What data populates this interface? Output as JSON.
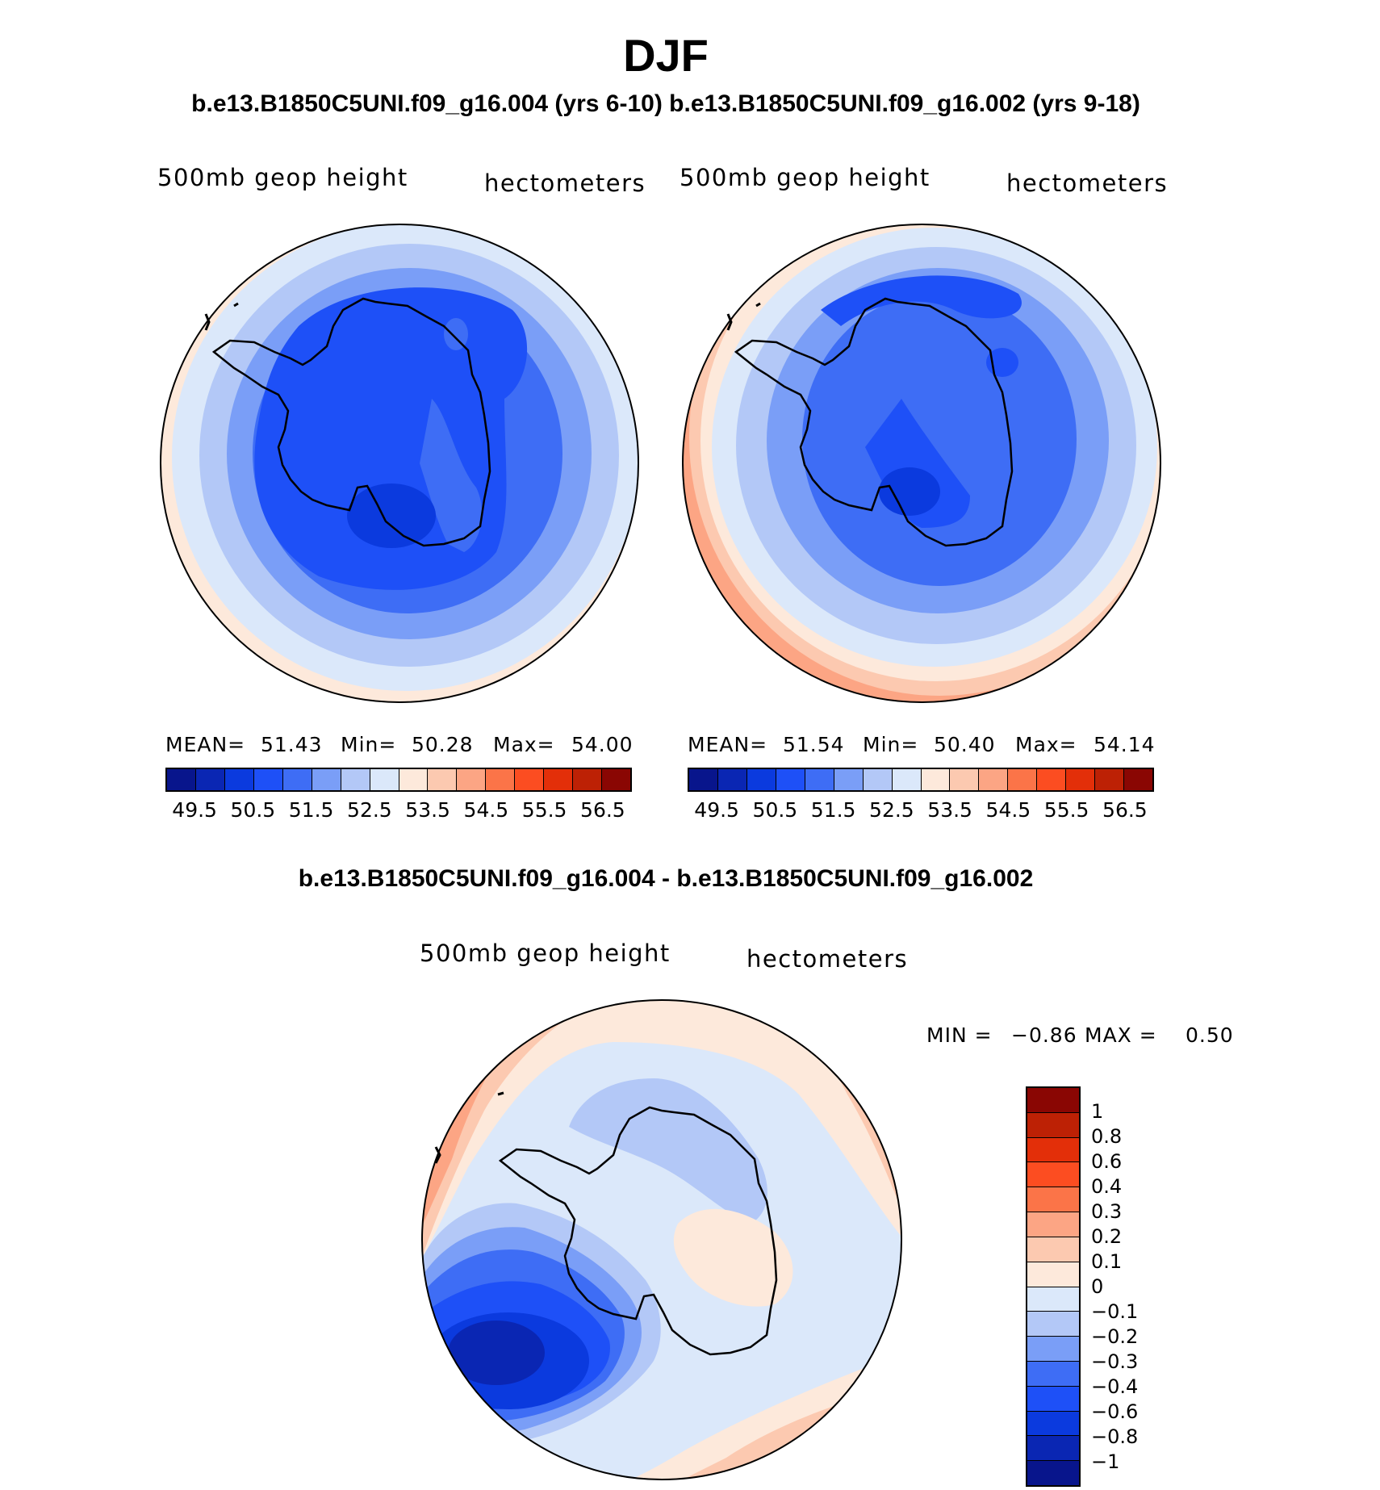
{
  "title": "DJF",
  "subtitle": "b.e13.B1850C5UNI.f09_g16.004 (yrs 6-10) b.e13.B1850C5UNI.f09_g16.002 (yrs 9-18)",
  "diff_title": "b.e13.B1850C5UNI.f09_g16.004 - b.e13.B1850C5UNI.f09_g16.002",
  "colors": {
    "abs": [
      "#08158c",
      "#0a26b3",
      "#0b3ade",
      "#1e50f7",
      "#3e6df5",
      "#7a9ef7",
      "#b3c8f7",
      "#dbe8fa",
      "#fde9db",
      "#fcc9b0",
      "#fca584",
      "#fb7448",
      "#fc4d21",
      "#e32f09",
      "#bd2105",
      "#8a0603"
    ],
    "diff": [
      "#8a0603",
      "#bd2105",
      "#e32f09",
      "#fc4d21",
      "#fb7448",
      "#fca584",
      "#fcc9b0",
      "#fde9db",
      "#dbe8fa",
      "#b3c8f7",
      "#7a9ef7",
      "#3e6df5",
      "#1e50f7",
      "#0b3ade",
      "#0a26b3",
      "#08158c"
    ]
  },
  "panels": [
    {
      "var_label": "500mb geop height",
      "units": "hectometers",
      "stats": {
        "mean_label": "MEAN=",
        "mean": "51.43",
        "min_label": "Min=",
        "min": "50.28",
        "max_label": "Max=",
        "max": "54.00"
      }
    },
    {
      "var_label": "500mb geop height",
      "units": "hectometers",
      "stats": {
        "mean_label": "MEAN=",
        "mean": "51.54",
        "min_label": "Min=",
        "min": "50.40",
        "max_label": "Max=",
        "max": "54.14"
      }
    }
  ],
  "abs_ticks": [
    "49.5",
    "50.5",
    "51.5",
    "52.5",
    "53.5",
    "54.5",
    "55.5",
    "56.5"
  ],
  "diff_panel": {
    "var_label": "500mb geop height",
    "units": "hectometers",
    "min_label": "MIN =",
    "min": "−0.86",
    "max_label": "MAX =",
    "max": "0.50"
  },
  "diff_ticks": [
    "1",
    "0.8",
    "0.6",
    "0.4",
    "0.3",
    "0.2",
    "0.1",
    "0",
    "−0.1",
    "−0.2",
    "−0.3",
    "−0.4",
    "−0.6",
    "−0.8",
    "−1"
  ]
}
